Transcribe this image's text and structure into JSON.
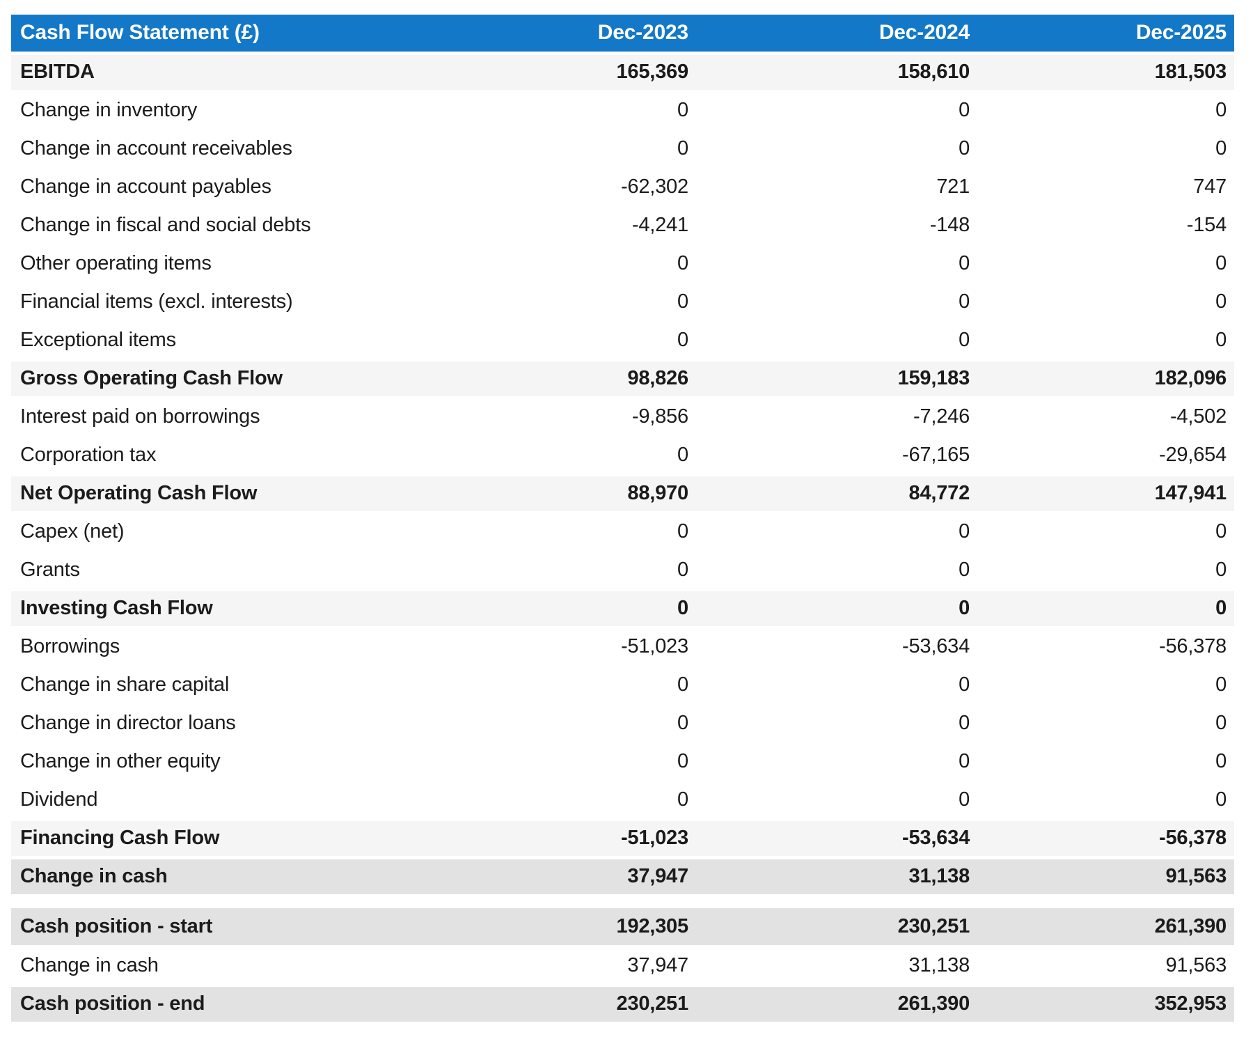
{
  "table": {
    "title": "Cash Flow Statement (£)",
    "columns": [
      "Dec-2023",
      "Dec-2024",
      "Dec-2025"
    ],
    "sections": [
      {
        "name": "main-statement",
        "rows": [
          {
            "label": "EBITDA",
            "style": "subtotal",
            "values": [
              "165,369",
              "158,610",
              "181,503"
            ]
          },
          {
            "label": "Change in inventory",
            "style": "normal",
            "values": [
              "0",
              "0",
              "0"
            ]
          },
          {
            "label": "Change in account receivables",
            "style": "normal",
            "values": [
              "0",
              "0",
              "0"
            ]
          },
          {
            "label": "Change in account payables",
            "style": "normal",
            "values": [
              "-62,302",
              "721",
              "747"
            ]
          },
          {
            "label": "Change in fiscal and social debts",
            "style": "normal",
            "values": [
              "-4,241",
              "-148",
              "-154"
            ]
          },
          {
            "label": "Other operating items",
            "style": "normal",
            "values": [
              "0",
              "0",
              "0"
            ]
          },
          {
            "label": "Financial items (excl. interests)",
            "style": "normal",
            "values": [
              "0",
              "0",
              "0"
            ]
          },
          {
            "label": "Exceptional items",
            "style": "normal",
            "values": [
              "0",
              "0",
              "0"
            ]
          },
          {
            "label": "Gross Operating Cash Flow",
            "style": "subtotal",
            "values": [
              "98,826",
              "159,183",
              "182,096"
            ]
          },
          {
            "label": "Interest paid on borrowings",
            "style": "normal",
            "values": [
              "-9,856",
              "-7,246",
              "-4,502"
            ]
          },
          {
            "label": "Corporation tax",
            "style": "normal",
            "values": [
              "0",
              "-67,165",
              "-29,654"
            ]
          },
          {
            "label": "Net Operating Cash Flow",
            "style": "subtotal",
            "values": [
              "88,970",
              "84,772",
              "147,941"
            ]
          },
          {
            "label": "Capex (net)",
            "style": "normal",
            "values": [
              "0",
              "0",
              "0"
            ]
          },
          {
            "label": "Grants",
            "style": "normal",
            "values": [
              "0",
              "0",
              "0"
            ]
          },
          {
            "label": "Investing Cash Flow",
            "style": "subtotal",
            "values": [
              "0",
              "0",
              "0"
            ]
          },
          {
            "label": "Borrowings",
            "style": "normal",
            "values": [
              "-51,023",
              "-53,634",
              "-56,378"
            ]
          },
          {
            "label": "Change in share capital",
            "style": "normal",
            "values": [
              "0",
              "0",
              "0"
            ]
          },
          {
            "label": "Change in director loans",
            "style": "normal",
            "values": [
              "0",
              "0",
              "0"
            ]
          },
          {
            "label": "Change in other equity",
            "style": "normal",
            "values": [
              "0",
              "0",
              "0"
            ]
          },
          {
            "label": "Dividend",
            "style": "normal",
            "values": [
              "0",
              "0",
              "0"
            ]
          },
          {
            "label": "Financing Cash Flow",
            "style": "subtotal",
            "values": [
              "-51,023",
              "-53,634",
              "-56,378"
            ]
          },
          {
            "label": "Change in cash",
            "style": "total",
            "values": [
              "37,947",
              "31,138",
              "91,563"
            ]
          }
        ]
      },
      {
        "name": "cash-position",
        "rows": [
          {
            "label": "Cash position - start",
            "style": "total",
            "values": [
              "192,305",
              "230,251",
              "261,390"
            ]
          },
          {
            "label": "Change in cash",
            "style": "normal",
            "values": [
              "37,947",
              "31,138",
              "91,563"
            ]
          },
          {
            "label": "Cash position - end",
            "style": "total",
            "values": [
              "230,251",
              "261,390",
              "352,953"
            ]
          }
        ]
      }
    ]
  },
  "colors": {
    "header_bg": "#1478c8",
    "header_text": "#ffffff",
    "subtotal_row_bg": "#f5f5f6",
    "total_row_bg": "#e2e2e2",
    "body_text": "#1b1b1b"
  }
}
